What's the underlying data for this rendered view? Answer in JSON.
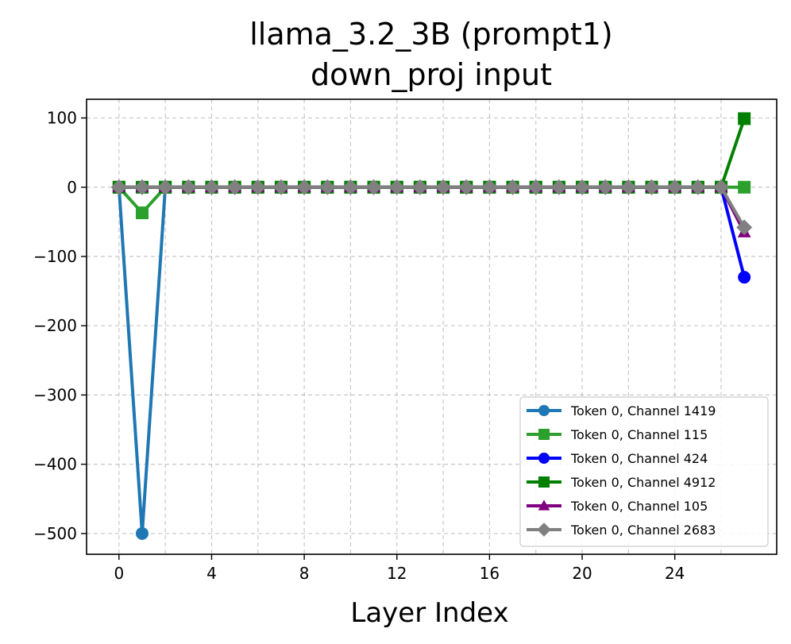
{
  "chart_data": {
    "type": "line",
    "title_line1": "llama_3.2_3B (prompt1)",
    "title_line2": "down_proj input",
    "xlabel": "Layer Index",
    "ylabel": "",
    "xlim": [
      -1.4,
      28.4
    ],
    "ylim": [
      -530,
      127
    ],
    "xticks": [
      0,
      4,
      8,
      12,
      16,
      20,
      24
    ],
    "yticks": [
      100,
      0,
      -100,
      -200,
      -300,
      -400,
      -500
    ],
    "ytick_labels": [
      "100",
      "0",
      "−100",
      "−200",
      "−300",
      "−400",
      "−500"
    ],
    "grid": true,
    "legend_position": "lower-right",
    "series": [
      {
        "name": "Token 0, Channel 1419",
        "color": "#1f77b4",
        "marker": "circle",
        "values": [
          0,
          -500,
          0,
          0,
          0,
          0,
          0,
          0,
          0,
          0,
          0,
          0,
          0,
          0,
          0,
          0,
          0,
          0,
          0,
          0,
          0,
          0,
          0,
          0,
          0,
          0,
          0,
          null
        ]
      },
      {
        "name": "Token 0, Channel 115",
        "color": "#2ca02c",
        "marker": "square",
        "values": [
          0,
          -37,
          0,
          0,
          0,
          0,
          0,
          0,
          0,
          0,
          0,
          0,
          0,
          0,
          0,
          0,
          0,
          0,
          0,
          0,
          0,
          0,
          0,
          0,
          0,
          0,
          0,
          0
        ]
      },
      {
        "name": "Token 0, Channel 424",
        "color": "#0000ff",
        "marker": "circle",
        "values": [
          0,
          0,
          0,
          0,
          0,
          0,
          0,
          0,
          0,
          0,
          0,
          0,
          0,
          0,
          0,
          0,
          0,
          0,
          0,
          0,
          0,
          0,
          0,
          0,
          0,
          0,
          0,
          -130
        ]
      },
      {
        "name": "Token 0, Channel 4912",
        "color": "#008000",
        "marker": "square",
        "values": [
          0,
          0,
          0,
          0,
          0,
          0,
          0,
          0,
          0,
          0,
          0,
          0,
          0,
          0,
          0,
          0,
          0,
          0,
          0,
          0,
          0,
          0,
          0,
          0,
          0,
          0,
          0,
          99
        ]
      },
      {
        "name": "Token 0, Channel 105",
        "color": "#800080",
        "marker": "triangle",
        "values": [
          0,
          0,
          0,
          0,
          0,
          0,
          0,
          0,
          0,
          0,
          0,
          0,
          0,
          0,
          0,
          0,
          0,
          0,
          0,
          0,
          0,
          0,
          0,
          0,
          0,
          0,
          0,
          -65
        ]
      },
      {
        "name": "Token 0, Channel 2683",
        "color": "#808080",
        "marker": "diamond",
        "values": [
          0,
          0,
          0,
          0,
          0,
          0,
          0,
          0,
          0,
          0,
          0,
          0,
          0,
          0,
          0,
          0,
          0,
          0,
          0,
          0,
          0,
          0,
          0,
          0,
          0,
          0,
          0,
          -58
        ]
      }
    ]
  }
}
